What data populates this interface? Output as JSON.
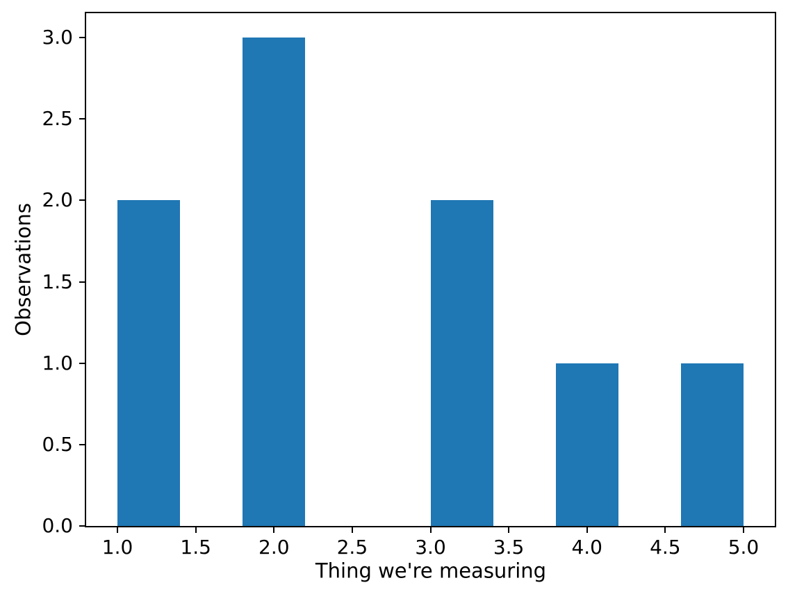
{
  "chart_data": {
    "type": "bar",
    "title": "",
    "xlabel": "Thing we're measuring",
    "ylabel": "Observations",
    "bar_color": "#1f77b4",
    "background_color": "#ffffff",
    "spine_color": "#000000",
    "grid": false,
    "legend": false,
    "xlim": [
      0.8,
      5.2
    ],
    "ylim": [
      0,
      3.15
    ],
    "x_ticks": [
      {
        "value": 1.0,
        "label": "1.0"
      },
      {
        "value": 1.5,
        "label": "1.5"
      },
      {
        "value": 2.0,
        "label": "2.0"
      },
      {
        "value": 2.5,
        "label": "2.5"
      },
      {
        "value": 3.0,
        "label": "3.0"
      },
      {
        "value": 3.5,
        "label": "3.5"
      },
      {
        "value": 4.0,
        "label": "4.0"
      },
      {
        "value": 4.5,
        "label": "4.5"
      },
      {
        "value": 5.0,
        "label": "5.0"
      }
    ],
    "y_ticks": [
      {
        "value": 0.0,
        "label": "0.0"
      },
      {
        "value": 0.5,
        "label": "0.5"
      },
      {
        "value": 1.0,
        "label": "1.0"
      },
      {
        "value": 1.5,
        "label": "1.5"
      },
      {
        "value": 2.0,
        "label": "2.0"
      },
      {
        "value": 2.5,
        "label": "2.5"
      },
      {
        "value": 3.0,
        "label": "3.0"
      }
    ],
    "bars": [
      {
        "x_start": 1.0,
        "x_end": 1.4,
        "value": 2
      },
      {
        "x_start": 1.8,
        "x_end": 2.2,
        "value": 3
      },
      {
        "x_start": 3.0,
        "x_end": 3.4,
        "value": 2
      },
      {
        "x_start": 3.8,
        "x_end": 4.2,
        "value": 1
      },
      {
        "x_start": 4.6,
        "x_end": 5.0,
        "value": 1
      }
    ]
  }
}
